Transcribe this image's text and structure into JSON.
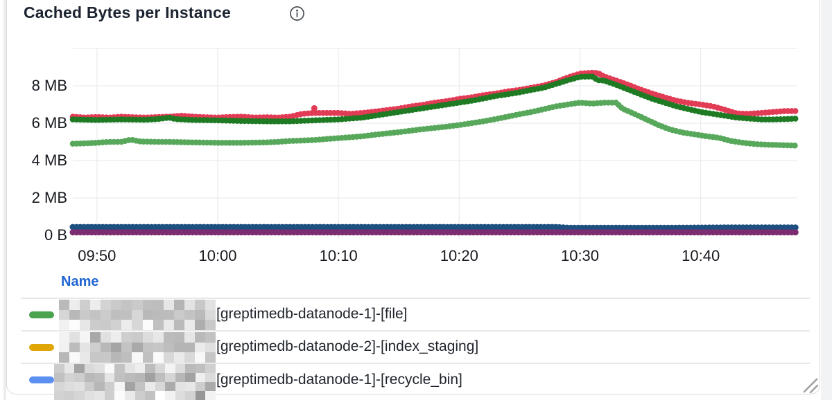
{
  "panel": {
    "title": "Cached Bytes per Instance"
  },
  "legend": {
    "header": "Name",
    "rows": [
      {
        "marker_color": "#4aa34e",
        "label": "[greptimedb-datanode-1]-[file]",
        "prefix_redacted": true
      },
      {
        "marker_color": "#dfa605",
        "label": "[greptimedb-datanode-2]-[index_staging]",
        "prefix_redacted": true
      },
      {
        "marker_color": "#5b8ff0",
        "label": "[greptimedb-datanode-1]-[recycle_bin]",
        "prefix_redacted": true
      }
    ]
  },
  "chart_data": {
    "type": "line",
    "title": "Cached Bytes per Instance",
    "xlabel": "",
    "ylabel": "",
    "ylim_mb": [
      0,
      10
    ],
    "grid": true,
    "legend_position": "bottom-table",
    "x_time_start": "09:48",
    "x_time_end": "10:48",
    "y_ticks": [
      {
        "mb": 10,
        "label": "",
        "grid": true
      },
      {
        "mb": 8,
        "label": "8 MB",
        "grid": true
      },
      {
        "mb": 6,
        "label": "6 MB",
        "grid": true
      },
      {
        "mb": 4,
        "label": "4 MB",
        "grid": true
      },
      {
        "mb": 2,
        "label": "2 MB",
        "grid": true
      },
      {
        "mb": 0,
        "label": "0 B",
        "grid": false
      }
    ],
    "x_ticks": [
      {
        "t": 2,
        "label": "09:50"
      },
      {
        "t": 12,
        "label": "10:00"
      },
      {
        "t": 22,
        "label": "10:10"
      },
      {
        "t": 32,
        "label": "10:20"
      },
      {
        "t": 42,
        "label": "10:30"
      },
      {
        "t": 52,
        "label": "10:40"
      }
    ],
    "outlier": {
      "t": 20,
      "mb": 6.8,
      "color": "#e23b55"
    },
    "series": [
      {
        "id": "crimson",
        "color": "#e23b55",
        "width": 8.6,
        "points": [
          [
            0,
            6.35
          ],
          [
            1,
            6.3
          ],
          [
            2,
            6.33
          ],
          [
            3,
            6.3
          ],
          [
            4,
            6.35
          ],
          [
            5,
            6.32
          ],
          [
            6,
            6.3
          ],
          [
            7,
            6.33
          ],
          [
            8,
            6.35
          ],
          [
            9,
            6.4
          ],
          [
            10,
            6.35
          ],
          [
            11,
            6.32
          ],
          [
            12,
            6.3
          ],
          [
            13,
            6.33
          ],
          [
            14,
            6.35
          ],
          [
            15,
            6.3
          ],
          [
            16,
            6.32
          ],
          [
            17,
            6.3
          ],
          [
            18,
            6.35
          ],
          [
            19,
            6.5
          ],
          [
            20,
            6.55
          ],
          [
            21,
            6.55
          ],
          [
            22,
            6.55
          ],
          [
            23,
            6.5
          ],
          [
            24,
            6.55
          ],
          [
            25,
            6.62
          ],
          [
            26,
            6.7
          ],
          [
            27,
            6.78
          ],
          [
            28,
            6.9
          ],
          [
            29,
            6.98
          ],
          [
            30,
            7.1
          ],
          [
            31,
            7.18
          ],
          [
            32,
            7.3
          ],
          [
            33,
            7.38
          ],
          [
            34,
            7.5
          ],
          [
            35,
            7.58
          ],
          [
            36,
            7.7
          ],
          [
            37,
            7.78
          ],
          [
            38,
            7.9
          ],
          [
            39,
            8.02
          ],
          [
            40,
            8.2
          ],
          [
            41,
            8.45
          ],
          [
            42,
            8.65
          ],
          [
            43,
            8.7
          ],
          [
            43.5,
            8.68
          ],
          [
            44,
            8.5
          ],
          [
            45,
            8.28
          ],
          [
            46,
            8.05
          ],
          [
            47,
            7.8
          ],
          [
            48,
            7.58
          ],
          [
            49,
            7.38
          ],
          [
            50,
            7.2
          ],
          [
            51,
            7.08
          ],
          [
            52,
            7.0
          ],
          [
            53,
            6.9
          ],
          [
            54,
            6.72
          ],
          [
            55,
            6.52
          ],
          [
            56,
            6.5
          ],
          [
            57,
            6.55
          ],
          [
            58,
            6.6
          ],
          [
            59,
            6.65
          ],
          [
            60,
            6.65
          ]
        ]
      },
      {
        "id": "dark-green",
        "color": "#1e7b24",
        "width": 8.6,
        "points": [
          [
            0,
            6.2
          ],
          [
            2,
            6.17
          ],
          [
            4,
            6.2
          ],
          [
            6,
            6.18
          ],
          [
            7,
            6.22
          ],
          [
            8,
            6.3
          ],
          [
            8.5,
            6.22
          ],
          [
            10,
            6.17
          ],
          [
            12,
            6.15
          ],
          [
            14,
            6.12
          ],
          [
            16,
            6.1
          ],
          [
            18,
            6.1
          ],
          [
            20,
            6.15
          ],
          [
            22,
            6.2
          ],
          [
            24,
            6.3
          ],
          [
            25,
            6.4
          ],
          [
            26,
            6.5
          ],
          [
            27,
            6.6
          ],
          [
            28,
            6.7
          ],
          [
            29,
            6.8
          ],
          [
            30,
            6.9
          ],
          [
            31,
            7.0
          ],
          [
            32,
            7.1
          ],
          [
            33,
            7.2
          ],
          [
            34,
            7.32
          ],
          [
            35,
            7.45
          ],
          [
            36,
            7.55
          ],
          [
            37,
            7.65
          ],
          [
            38,
            7.78
          ],
          [
            39,
            7.9
          ],
          [
            40,
            8.1
          ],
          [
            41,
            8.3
          ],
          [
            42,
            8.48
          ],
          [
            43,
            8.5
          ],
          [
            43.5,
            8.3
          ],
          [
            44,
            8.28
          ],
          [
            45,
            8.05
          ],
          [
            46,
            7.8
          ],
          [
            47,
            7.55
          ],
          [
            48,
            7.3
          ],
          [
            49,
            7.1
          ],
          [
            50,
            6.9
          ],
          [
            51,
            6.75
          ],
          [
            52,
            6.6
          ],
          [
            53,
            6.5
          ],
          [
            54,
            6.4
          ],
          [
            55,
            6.3
          ],
          [
            56,
            6.25
          ],
          [
            57,
            6.2
          ],
          [
            58,
            6.2
          ],
          [
            59,
            6.22
          ],
          [
            60,
            6.25
          ]
        ]
      },
      {
        "id": "light-green",
        "color": "#58a85c",
        "width": 8.6,
        "points": [
          [
            0,
            4.9
          ],
          [
            1,
            4.92
          ],
          [
            2,
            4.95
          ],
          [
            3,
            5.0
          ],
          [
            4,
            5.0
          ],
          [
            4.8,
            5.12
          ],
          [
            5.6,
            5.02
          ],
          [
            7,
            5.0
          ],
          [
            8,
            5.0
          ],
          [
            9,
            4.98
          ],
          [
            10,
            4.97
          ],
          [
            12,
            4.95
          ],
          [
            14,
            4.95
          ],
          [
            16,
            4.97
          ],
          [
            17,
            5.0
          ],
          [
            18,
            5.05
          ],
          [
            19,
            5.07
          ],
          [
            20,
            5.1
          ],
          [
            21,
            5.15
          ],
          [
            22,
            5.2
          ],
          [
            23,
            5.25
          ],
          [
            24,
            5.3
          ],
          [
            25,
            5.38
          ],
          [
            26,
            5.45
          ],
          [
            27,
            5.52
          ],
          [
            28,
            5.6
          ],
          [
            29,
            5.68
          ],
          [
            30,
            5.75
          ],
          [
            31,
            5.82
          ],
          [
            32,
            5.9
          ],
          [
            33,
            6.0
          ],
          [
            34,
            6.1
          ],
          [
            35,
            6.22
          ],
          [
            36,
            6.35
          ],
          [
            37,
            6.48
          ],
          [
            38,
            6.6
          ],
          [
            39,
            6.75
          ],
          [
            40,
            6.9
          ],
          [
            41,
            7.0
          ],
          [
            42,
            7.1
          ],
          [
            43,
            7.05
          ],
          [
            44,
            7.1
          ],
          [
            45,
            7.1
          ],
          [
            45.5,
            6.78
          ],
          [
            46.5,
            6.5
          ],
          [
            47.5,
            6.2
          ],
          [
            48.5,
            5.9
          ],
          [
            49.5,
            5.65
          ],
          [
            50.5,
            5.5
          ],
          [
            51.5,
            5.4
          ],
          [
            52.5,
            5.3
          ],
          [
            53.5,
            5.22
          ],
          [
            54.5,
            5.05
          ],
          [
            55.5,
            4.95
          ],
          [
            56.5,
            4.88
          ],
          [
            57.5,
            4.85
          ],
          [
            58.5,
            4.83
          ],
          [
            60,
            4.8
          ]
        ]
      },
      {
        "id": "navy",
        "color": "#1d4f80",
        "width": 9,
        "points": [
          [
            0,
            0.44
          ],
          [
            10,
            0.44
          ],
          [
            20,
            0.44
          ],
          [
            30,
            0.44
          ],
          [
            40,
            0.44
          ],
          [
            41,
            0.4
          ],
          [
            50,
            0.4
          ],
          [
            55,
            0.42
          ],
          [
            60,
            0.42
          ]
        ]
      },
      {
        "id": "purple",
        "color": "#7c2d70",
        "width": 9,
        "points": [
          [
            0,
            0.16
          ],
          [
            20,
            0.16
          ],
          [
            40,
            0.16
          ],
          [
            60,
            0.16
          ]
        ]
      }
    ]
  }
}
